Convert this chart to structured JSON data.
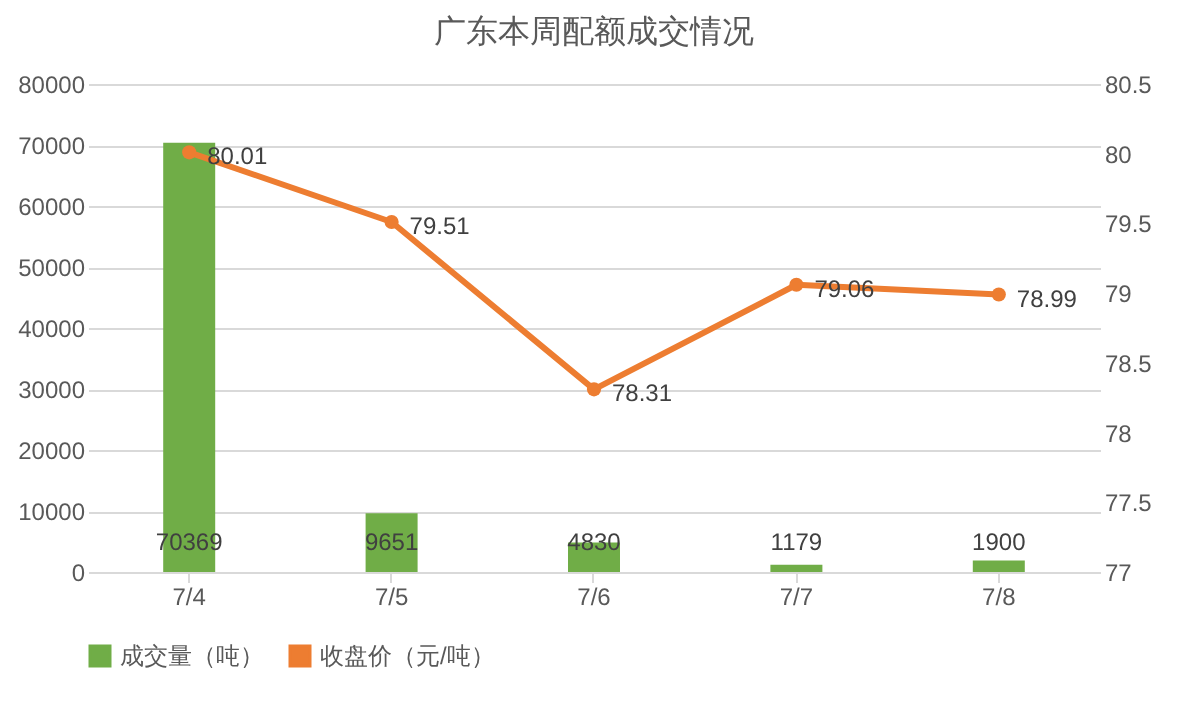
{
  "chart_data": {
    "type": "bar",
    "title": "广东本周配额成交情况",
    "categories": [
      "7/4",
      "7/5",
      "7/6",
      "7/7",
      "7/8"
    ],
    "series": [
      {
        "name": "成交量（吨）",
        "color": "#70ad47",
        "values": [
          70369,
          9651,
          4830,
          1179,
          1900
        ]
      },
      {
        "name": "收盘价（元/吨）",
        "type": "line",
        "axis": "y2",
        "color": "#ed7d31",
        "values": [
          80.01,
          79.51,
          78.31,
          79.06,
          78.99
        ]
      }
    ],
    "ylim": [
      0,
      80000
    ],
    "yticks": [
      0,
      10000,
      20000,
      30000,
      40000,
      50000,
      60000,
      70000,
      80000
    ],
    "y2lim": [
      77,
      80.5
    ],
    "y2ticks": [
      77,
      77.5,
      78,
      78.5,
      79,
      79.5,
      80,
      80.5
    ],
    "grid": "y",
    "legend": "bottom",
    "marker": "circle",
    "data_labels": true
  }
}
